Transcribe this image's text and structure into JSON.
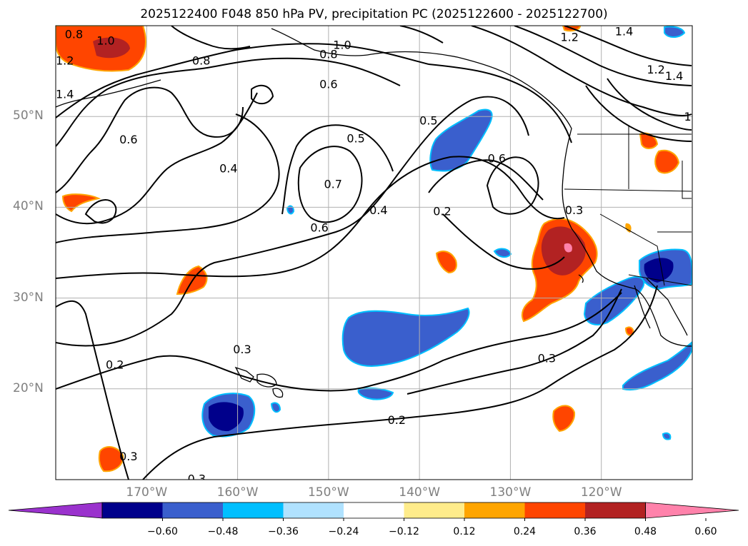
{
  "title": "2025122400 F048 850 hPa PV, precipitation PC (2025122600 - 2025122700)",
  "map": {
    "lon_range": [
      -180,
      -110
    ],
    "lat_range": [
      10,
      60
    ],
    "lat_ticks": [
      {
        "value": 50,
        "label": "50°N"
      },
      {
        "value": 40,
        "label": "40°N"
      },
      {
        "value": 30,
        "label": "30°N"
      },
      {
        "value": 20,
        "label": "20°N"
      }
    ],
    "lon_ticks": [
      {
        "value": -170,
        "label": "170°W"
      },
      {
        "value": -160,
        "label": "160°W"
      },
      {
        "value": -150,
        "label": "150°W"
      },
      {
        "value": -140,
        "label": "140°W"
      },
      {
        "value": -130,
        "label": "130°W"
      },
      {
        "value": -120,
        "label": "120°W"
      }
    ],
    "gridlines": true,
    "contour_labels": [
      {
        "text": "0.8",
        "lon": -178,
        "lat": 59.1
      },
      {
        "text": "1.0",
        "lon": -174.5,
        "lat": 58.4
      },
      {
        "text": "1.2",
        "lon": -179,
        "lat": 56.2
      },
      {
        "text": "1.4",
        "lon": -179,
        "lat": 52.5
      },
      {
        "text": "0.6",
        "lon": -172,
        "lat": 47.5
      },
      {
        "text": "0.8",
        "lon": -164,
        "lat": 56.2
      },
      {
        "text": "1.0",
        "lon": -148.5,
        "lat": 57.9
      },
      {
        "text": "0.8",
        "lon": -150,
        "lat": 56.9
      },
      {
        "text": "0.6",
        "lon": -150,
        "lat": 53.6
      },
      {
        "text": "0.5",
        "lon": -147,
        "lat": 47.6
      },
      {
        "text": "0.5",
        "lon": -139,
        "lat": 49.6
      },
      {
        "text": "0.4",
        "lon": -161,
        "lat": 44.3
      },
      {
        "text": "0.7",
        "lon": -149.5,
        "lat": 42.6
      },
      {
        "text": "0.6",
        "lon": -151,
        "lat": 37.8
      },
      {
        "text": "0.4",
        "lon": -144.5,
        "lat": 39.7
      },
      {
        "text": "0.6",
        "lon": -131.5,
        "lat": 45.4
      },
      {
        "text": "0.2",
        "lon": -137.5,
        "lat": 39.6
      },
      {
        "text": "0.3",
        "lon": -123,
        "lat": 39.7
      },
      {
        "text": "1.2",
        "lon": -123.5,
        "lat": 58.8
      },
      {
        "text": "1.4",
        "lon": -117.5,
        "lat": 59.4
      },
      {
        "text": "1.2",
        "lon": -114,
        "lat": 55.2
      },
      {
        "text": "1.4",
        "lon": -112,
        "lat": 54.5
      },
      {
        "text": "1",
        "lon": -110.5,
        "lat": 50
      },
      {
        "text": "0.3",
        "lon": -159.5,
        "lat": 24.4
      },
      {
        "text": "0.2",
        "lon": -173.5,
        "lat": 22.7
      },
      {
        "text": "0.3",
        "lon": -126,
        "lat": 23.4
      },
      {
        "text": "0.2",
        "lon": -142.5,
        "lat": 16.6
      },
      {
        "text": "0.3",
        "lon": -172,
        "lat": 12.6
      },
      {
        "text": "0.3",
        "lon": -164.5,
        "lat": 10.1
      }
    ]
  },
  "colorbar": {
    "colors": [
      "#9a32cd",
      "#00008b",
      "#3a5fcd",
      "#00bfff",
      "#b0e2ff",
      "#ffffff",
      "#ffec8b",
      "#ffa500",
      "#ff4500",
      "#b22222",
      "#ff82ab"
    ],
    "tick_labels": [
      "−0.60",
      "−0.48",
      "−0.36",
      "−0.24",
      "−0.12",
      "0.12",
      "0.24",
      "0.36",
      "0.48",
      "0.60"
    ]
  }
}
